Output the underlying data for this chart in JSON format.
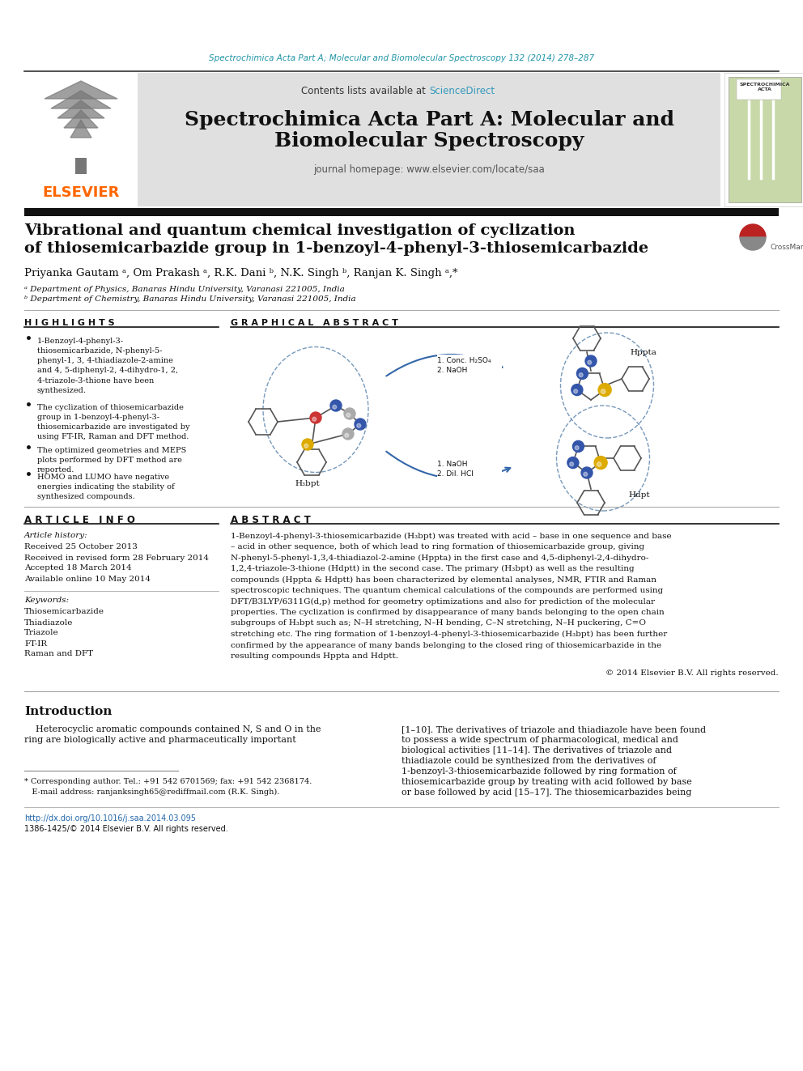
{
  "journal_header_text": "Spectrochimica Acta Part A; Molecular and Biomolecular Spectroscopy 132 (2014) 278–287",
  "journal_header_color": "#2196A8",
  "contents_text": "Contents lists available at ",
  "sciencedirect_text": "ScienceDirect",
  "sciencedirect_color": "#3399BB",
  "journal_title_line1": "Spectrochimica Acta Part A: Molecular and",
  "journal_title_line2": "Biomolecular Spectroscopy",
  "journal_homepage": "journal homepage: www.elsevier.com/locate/saa",
  "elsevier_color": "#FF6600",
  "header_bg": "#E0E0E0",
  "black_bar_color": "#111111",
  "paper_title_line1": "Vibrational and quantum chemical investigation of cyclization",
  "paper_title_line2": "of thiosemicarbazide group in 1-benzoyl-4-phenyl-3-thiosemicarbazide",
  "authors": "Priyanka Gautam ᵃ, Om Prakash ᵃ, R.K. Dani ᵇ, N.K. Singh ᵇ, Ranjan K. Singh ᵃ,*",
  "affiliation_a": "ᵃ Department of Physics, Banaras Hindu University, Varanasi 221005, India",
  "affiliation_b": "ᵇ Department of Chemistry, Banaras Hindu University, Varanasi 221005, India",
  "highlights_title": "H I G H L I G H T S",
  "graphical_abstract_title": "G R A P H I C A L   A B S T R A C T",
  "article_info_title": "A R T I C L E   I N F O",
  "article_history": "Article history:",
  "received": "Received 25 October 2013",
  "revised": "Received in revised form 28 February 2014",
  "accepted": "Accepted 18 March 2014",
  "available": "Available online 10 May 2014",
  "keywords_title": "Keywords:",
  "keywords": [
    "Thiosemicarbazide",
    "Thiadiazole",
    "Triazole",
    "FT-IR",
    "Raman and DFT"
  ],
  "abstract_title": "A B S T R A C T",
  "copyright": "© 2014 Elsevier B.V. All rights reserved.",
  "intro_title": "Introduction",
  "footnote_corresponding": "* Corresponding author. Tel.: +91 542 6701569; fax: +91 542 2368174.",
  "footnote_email": "   E-mail address: ranjanksingh65@rediffmail.com (R.K. Singh).",
  "footnote_email_link": "ranjanksingh65@rediffmail.com",
  "doi_text": "http://dx.doi.org/10.1016/j.saa.2014.03.095",
  "issn_text": "1386-1425/© 2014 Elsevier B.V. All rights reserved.",
  "doi_color": "#2266AA",
  "bg_color": "#FFFFFF",
  "text_color": "#000000",
  "highlights": [
    "1-Benzoyl-4-phenyl-3-\nthiosemicarbazide, N-phenyl-5-\nphenyl-1, 3, 4-thiadiazole-2-amine\nand 4, 5-diphenyl-2, 4-dihydro-1, 2,\n4-triazole-3-thione have been\nsynthesized.",
    "The cyclization of thiosemicarbazide\ngroup in 1-benzoyl-4-phenyl-3-\nthiosemicarbazide are investigated by\nusing FT-IR, Raman and DFT method.",
    "The optimized geometries and MEPS\nplots performed by DFT method are\nreported.",
    "HOMO and LUMO have negative\nenergies indicating the stability of\nsynthesized compounds."
  ],
  "abstract_lines": [
    "1-Benzoyl-4-phenyl-3-thiosemicarbazide (H₃bpt) was treated with acid – base in one sequence and base",
    "– acid in other sequence, both of which lead to ring formation of thiosemicarbazide group, giving",
    "N-phenyl-5-phenyl-1,3,4-thiadiazol-2-amine (Hppta) in the first case and 4,5-diphenyl-2,4-dihydro-",
    "1,2,4-triazole-3-thione (Hdptt) in the second case. The primary (H₃bpt) as well as the resulting",
    "compounds (Hppta & Hdptt) has been characterized by elemental analyses, NMR, FTIR and Raman",
    "spectroscopic techniques. The quantum chemical calculations of the compounds are performed using",
    "DFT/B3LYP/6311G(d,p) method for geometry optimizations and also for prediction of the molecular",
    "properties. The cyclization is confirmed by disappearance of many bands belonging to the open chain",
    "subgroups of H₃bpt such as; N–H stretching, N–H bending, C–N stretching, N–H puckering, C=O",
    "stretching etc. The ring formation of 1-benzoyl-4-phenyl-3-thiosemicarbazide (H₃bpt) has been further",
    "confirmed by the appearance of many bands belonging to the closed ring of thiosemicarbazide in the",
    "resulting compounds Hppta and Hdptt."
  ],
  "intro_col1": [
    "    Heterocyclic aromatic compounds contained N, S and O in the",
    "ring are biologically active and pharmaceutically important"
  ],
  "intro_col2": [
    "[1–10]. The derivatives of triazole and thiadiazole have been found",
    "to possess a wide spectrum of pharmacological, medical and",
    "biological activities [11–14]. The derivatives of triazole and",
    "thiadiazole could be synthesized from the derivatives of",
    "1-benzoyl-3-thiosemicarbazide followed by ring formation of",
    "thiosemicarbazide group by treating with acid followed by base",
    "or base followed by acid [15–17]. The thiosemicarbazides being"
  ]
}
